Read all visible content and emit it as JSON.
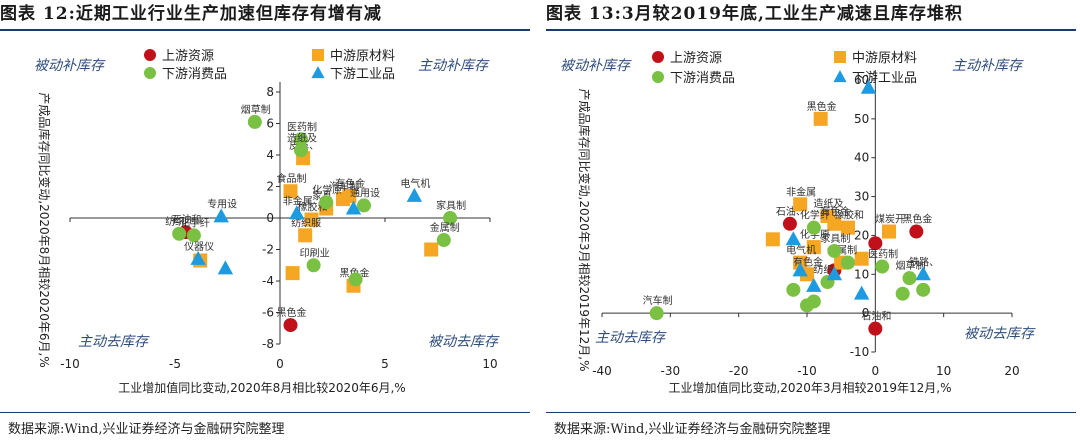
{
  "left": {
    "title": "图表 12:近期工业行业生产加速但库存有增有减",
    "source": "数据来源:Wind,兴业证券经济与金融研究院整理",
    "quadrants": {
      "tl": "被动补库存",
      "tr": "主动补库存",
      "bl": "主动去库存",
      "br": "被动去库存"
    },
    "legend": [
      "上游资源",
      "中游原材料",
      "下游消费品",
      "下游工业品"
    ],
    "xlabel": "工业增加值同比变动,2020年8月相比较2020年6月,%",
    "ylabel": "产成品库存同比变动,2020年8月相较2020年6月,%",
    "ytick_labels": [
      "8",
      "6",
      "4",
      "2",
      "0",
      "-2",
      "-4",
      "-6",
      "-8"
    ],
    "xtick_labels": [
      "-10",
      "-5",
      "0",
      "5",
      "10"
    ]
  },
  "right": {
    "title": "图表 13:3月较2019年底,工业生产减速且库存堆积",
    "source": "数据来源:Wind,兴业证券经济与金融研究院整理",
    "quadrants": {
      "tl": "被动补库存",
      "tr": "主动补库存",
      "bl": "主动去库存",
      "br": "被动去库存"
    },
    "legend": [
      "上游资源",
      "中游原材料",
      "下游消费品",
      "下游工业品"
    ],
    "xlabel": "工业增加值同比变动,2020年3月相较2019年12月,%",
    "ylabel": "产成品库存同比变动,2020年3月相较2019年12月,%",
    "ytick_labels": [
      "60",
      "50",
      "40",
      "30",
      "20",
      "10",
      "0",
      "-10"
    ],
    "xtick_labels": [
      "-40",
      "-30",
      "-20",
      "-10",
      "0",
      "10",
      "20"
    ]
  },
  "colors": {
    "upstream": "#c0111a",
    "midstream": "#f5a623",
    "consumer": "#7ac143",
    "industrial": "#1e9be0",
    "axis": "#333333",
    "title_rule": "#1a3a6e"
  },
  "chart_data": [
    {
      "type": "scatter",
      "title": "图表 12:近期工业行业生产加速但库存有增有减",
      "xlabel": "工业增加值同比变动,2020年8月相比较2020年6月,%",
      "ylabel": "产成品库存同比变动,2020年8月相较2020年6月,%",
      "xlim": [
        -10,
        10
      ],
      "ylim": [
        -8,
        8
      ],
      "legend_position": "top-left",
      "series": [
        {
          "name": "上游资源",
          "marker": "circle",
          "points": [
            {
              "x": -4.5,
              "y": -0.9,
              "label": "石油和"
            },
            {
              "x": 0.5,
              "y": -6.8,
              "label": "黑色金"
            }
          ]
        },
        {
          "name": "中游原材料",
          "marker": "square",
          "points": [
            {
              "x": 1.1,
              "y": 3.8,
              "label": "皮革、"
            },
            {
              "x": 0.5,
              "y": 1.7,
              "label": "食品制"
            },
            {
              "x": 3.3,
              "y": 1.4,
              "label": "有色金"
            },
            {
              "x": 3.0,
              "y": 1.2,
              "label": "汽车制"
            },
            {
              "x": 2.2,
              "y": 0.6,
              "label": "家具"
            },
            {
              "x": 1.5,
              "y": -0.1,
              "label": "橡胶和"
            },
            {
              "x": 1.2,
              "y": -1.1,
              "label": "纺织服"
            },
            {
              "x": 0.6,
              "y": -3.5,
              "label": ""
            },
            {
              "x": -3.8,
              "y": -2.7,
              "label": ""
            },
            {
              "x": 3.5,
              "y": -4.3,
              "label": "黑色金"
            },
            {
              "x": 7.2,
              "y": -2.0,
              "label": ""
            }
          ]
        },
        {
          "name": "下游消费品",
          "marker": "circle",
          "points": [
            {
              "x": -1.2,
              "y": 6.1,
              "label": "烟草制"
            },
            {
              "x": 1.0,
              "y": 5.0,
              "label": "医药制"
            },
            {
              "x": 1.0,
              "y": 4.3,
              "label": "造纸及"
            },
            {
              "x": 2.2,
              "y": 1.0,
              "label": "化学原"
            },
            {
              "x": 4.0,
              "y": 0.8,
              "label": "通用设"
            },
            {
              "x": -4.8,
              "y": -1.0,
              "label": "纺织"
            },
            {
              "x": -4.1,
              "y": -1.1,
              "label": "化学纤"
            },
            {
              "x": 1.6,
              "y": -3.0,
              "label": "印刷业"
            },
            {
              "x": 3.6,
              "y": -3.9,
              "label": ""
            },
            {
              "x": 8.1,
              "y": 0.0,
              "label": "家具制"
            },
            {
              "x": 7.8,
              "y": -1.4,
              "label": "金属制"
            }
          ]
        },
        {
          "name": "下游工业品",
          "marker": "triangle",
          "points": [
            {
              "x": -2.8,
              "y": 0.1,
              "label": "专用设"
            },
            {
              "x": -3.9,
              "y": -2.6,
              "label": "仪器仪"
            },
            {
              "x": -2.6,
              "y": -3.2,
              "label": ""
            },
            {
              "x": 0.8,
              "y": 0.3,
              "label": "非金属"
            },
            {
              "x": 3.5,
              "y": 0.6,
              "label": ""
            },
            {
              "x": 6.4,
              "y": 1.4,
              "label": "电气机"
            }
          ]
        }
      ]
    },
    {
      "type": "scatter",
      "title": "图表 13:3月较2019年底,工业生产减速且库存堆积",
      "xlabel": "工业增加值同比变动,2020年3月相较2019年12月,%",
      "ylabel": "产成品库存同比变动,2020年3月相较2019年12月,%",
      "xlim": [
        -40,
        20
      ],
      "ylim": [
        -10,
        60
      ],
      "legend_position": "top-left",
      "series": [
        {
          "name": "上游资源",
          "marker": "circle",
          "points": [
            {
              "x": -12.5,
              "y": 23,
              "label": "石油、"
            },
            {
              "x": 6,
              "y": 21,
              "label": "黑色金"
            },
            {
              "x": 0,
              "y": 18,
              "label": ""
            },
            {
              "x": -6,
              "y": 11,
              "label": ""
            },
            {
              "x": 0,
              "y": -4,
              "label": "石油和"
            }
          ]
        },
        {
          "name": "中游原材料",
          "marker": "square",
          "points": [
            {
              "x": -8,
              "y": 50,
              "label": "黑色金"
            },
            {
              "x": -11,
              "y": 28,
              "label": "非金属"
            },
            {
              "x": -7,
              "y": 25,
              "label": "造纸及"
            },
            {
              "x": -6,
              "y": 23,
              "label": "有色金"
            },
            {
              "x": -4,
              "y": 22,
              "label": "橡胶和"
            },
            {
              "x": -15,
              "y": 19,
              "label": ""
            },
            {
              "x": -2,
              "y": 14,
              "label": ""
            },
            {
              "x": -9,
              "y": 17,
              "label": "化学原"
            },
            {
              "x": -5,
              "y": 13,
              "label": "金属制"
            },
            {
              "x": 2,
              "y": 21,
              "label": "煤炭开"
            },
            {
              "x": -10,
              "y": 10,
              "label": "有色金"
            },
            {
              "x": -11,
              "y": 13,
              "label": "电气机"
            }
          ]
        },
        {
          "name": "下游消费品",
          "marker": "circle",
          "points": [
            {
              "x": -32,
              "y": 0,
              "label": "汽车制"
            },
            {
              "x": -9,
              "y": 22,
              "label": "化学纤"
            },
            {
              "x": -6,
              "y": 16,
              "label": "家具制"
            },
            {
              "x": -4,
              "y": 13,
              "label": ""
            },
            {
              "x": 1,
              "y": 12,
              "label": "医药制"
            },
            {
              "x": 5,
              "y": 9,
              "label": "烟草制"
            },
            {
              "x": 7,
              "y": 6,
              "label": ""
            },
            {
              "x": -7,
              "y": 8,
              "label": "纺织"
            },
            {
              "x": -9,
              "y": 3,
              "label": ""
            },
            {
              "x": -10,
              "y": 2,
              "label": ""
            },
            {
              "x": -12,
              "y": 6,
              "label": ""
            },
            {
              "x": 4,
              "y": 5,
              "label": ""
            }
          ]
        },
        {
          "name": "下游工业品",
          "marker": "triangle",
          "points": [
            {
              "x": -1,
              "y": 58,
              "label": ""
            },
            {
              "x": -12,
              "y": 19,
              "label": ""
            },
            {
              "x": -11,
              "y": 11,
              "label": ""
            },
            {
              "x": -9,
              "y": 7,
              "label": ""
            },
            {
              "x": -6,
              "y": 10,
              "label": ""
            },
            {
              "x": -2,
              "y": 5,
              "label": ""
            },
            {
              "x": 7,
              "y": 10,
              "label": "铁路、"
            }
          ]
        }
      ]
    }
  ]
}
